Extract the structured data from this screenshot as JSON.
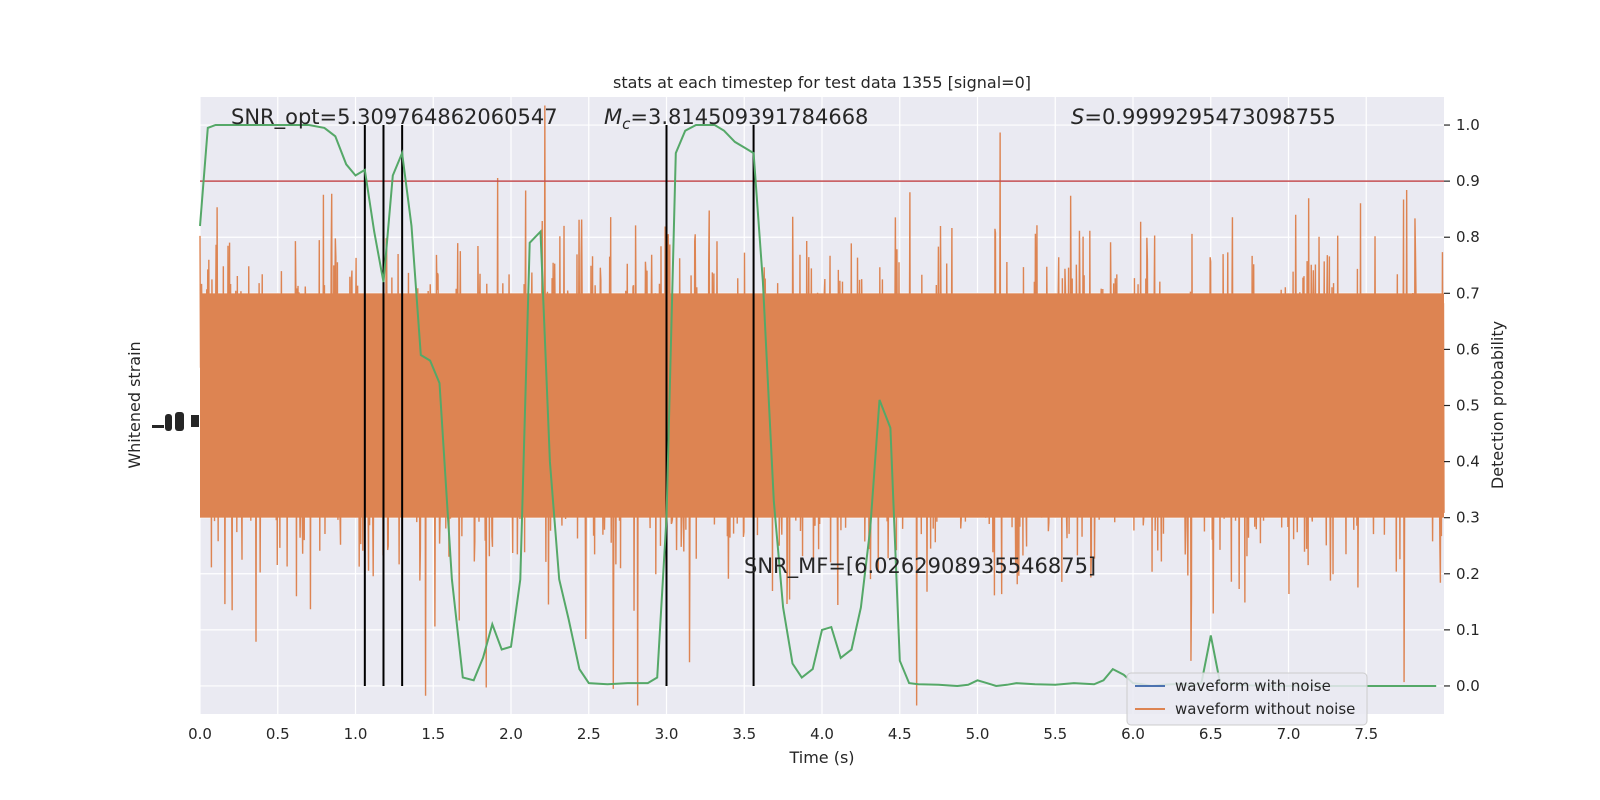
{
  "chart_data": {
    "type": "line",
    "title": "stats at each timestep for test data 1355 [signal=0]",
    "xlabel": "Time (s)",
    "ylabel_left": "Whitened strain",
    "ylabel_right": "Detection probability",
    "xlim": [
      0,
      8
    ],
    "ylim_right": [
      -0.05,
      1.05
    ],
    "x_ticks": [
      0.0,
      0.5,
      1.0,
      1.5,
      2.0,
      2.5,
      3.0,
      3.5,
      4.0,
      4.5,
      5.0,
      5.5,
      6.0,
      6.5,
      7.0,
      7.5
    ],
    "x_tick_labels": [
      "0.0",
      "0.5",
      "1.0",
      "1.5",
      "2.0",
      "2.5",
      "3.0",
      "3.5",
      "4.0",
      "4.5",
      "5.0",
      "5.5",
      "6.0",
      "6.5",
      "7.0",
      "7.5"
    ],
    "y_right_ticks": [
      0.0,
      0.1,
      0.2,
      0.3,
      0.4,
      0.5,
      0.6,
      0.7,
      0.8,
      0.9,
      1.0
    ],
    "y_right_tick_labels": [
      "0.0",
      "0.1",
      "0.2",
      "0.3",
      "0.4",
      "0.5",
      "0.6",
      "0.7",
      "0.8",
      "0.9",
      "1.0"
    ],
    "grid": true,
    "threshold": 0.9,
    "vertical_markers": [
      1.06,
      1.18,
      1.3,
      3.0,
      3.56
    ],
    "annotations": {
      "snr_opt": "SNR_opt=5.309764862060547",
      "mc_symbol": "M",
      "mc_sub": "c",
      "mc_value": "=3.814509391784668",
      "s_symbol": "S",
      "s_value": "=0.9999295473098755",
      "snr_mf": "SNR_MF=[6.0262908935546875]"
    },
    "series": [
      {
        "name": "waveform with noise",
        "color": "#4c72b0"
      },
      {
        "name": "waveform without noise",
        "color": "#dd8452"
      }
    ],
    "probability_series": {
      "color": "#55a868",
      "x": [
        0.0,
        0.05,
        0.1,
        0.2,
        0.3,
        0.4,
        0.5,
        0.6,
        0.7,
        0.8,
        0.87,
        0.94,
        1.0,
        1.06,
        1.12,
        1.18,
        1.24,
        1.3,
        1.36,
        1.42,
        1.48,
        1.54,
        1.62,
        1.69,
        1.76,
        1.82,
        1.88,
        1.94,
        2.0,
        2.06,
        2.12,
        2.19,
        2.25,
        2.31,
        2.37,
        2.44,
        2.5,
        2.62,
        2.75,
        2.88,
        2.94,
        3.0,
        3.06,
        3.12,
        3.19,
        3.25,
        3.31,
        3.37,
        3.44,
        3.5,
        3.56,
        3.62,
        3.69,
        3.75,
        3.81,
        3.87,
        3.94,
        4.0,
        4.06,
        4.12,
        4.19,
        4.25,
        4.31,
        4.37,
        4.44,
        4.5,
        4.56,
        4.62,
        4.75,
        4.87,
        4.94,
        5.0,
        5.06,
        5.12,
        5.19,
        5.25,
        5.37,
        5.5,
        5.62,
        5.75,
        5.81,
        5.87,
        5.94,
        6.0,
        6.06,
        6.12,
        6.19,
        6.25,
        6.31,
        6.37,
        6.44,
        6.5,
        6.56,
        6.62,
        6.75,
        7.0,
        7.5,
        7.95
      ],
      "values": [
        0.82,
        0.995,
        1.0,
        1.0,
        1.0,
        1.0,
        1.0,
        1.0,
        1.0,
        0.995,
        0.98,
        0.93,
        0.91,
        0.92,
        0.81,
        0.72,
        0.91,
        0.95,
        0.82,
        0.59,
        0.58,
        0.54,
        0.19,
        0.015,
        0.01,
        0.05,
        0.11,
        0.065,
        0.07,
        0.19,
        0.79,
        0.81,
        0.4,
        0.19,
        0.12,
        0.03,
        0.005,
        0.003,
        0.005,
        0.005,
        0.015,
        0.3,
        0.95,
        0.99,
        1.0,
        1.0,
        1.0,
        0.99,
        0.97,
        0.96,
        0.95,
        0.72,
        0.33,
        0.14,
        0.04,
        0.015,
        0.03,
        0.1,
        0.105,
        0.05,
        0.065,
        0.14,
        0.28,
        0.51,
        0.46,
        0.045,
        0.005,
        0.003,
        0.002,
        0.0,
        0.002,
        0.01,
        0.005,
        0.0,
        0.002,
        0.005,
        0.003,
        0.002,
        0.005,
        0.003,
        0.01,
        0.03,
        0.02,
        0.005,
        0.003,
        0.0,
        0.002,
        0.003,
        0.004,
        0.0,
        0.005,
        0.09,
        0.005,
        0.003,
        0.001,
        0.0,
        0.0,
        0.0
      ]
    }
  }
}
